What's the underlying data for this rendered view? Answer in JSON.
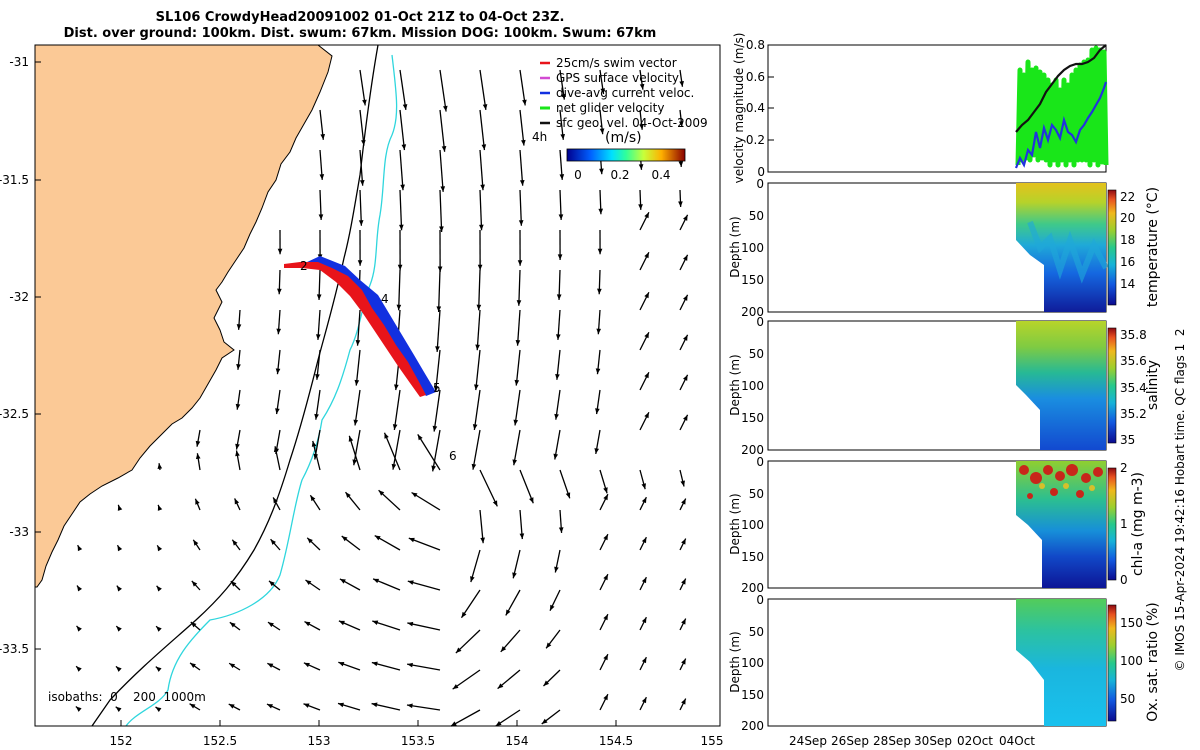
{
  "title": {
    "line1": "SL106 CrowdyHead20091002 01-Oct 21Z to 04-Oct 23Z.",
    "line2": "Dist. over ground: 100km. Dist. swum: 67km. Mission DOG: 100km. Swum: 67km"
  },
  "credit": "© IMOS 15-Apr-2024 19:42:16 Hobart time. QC flags 1  2",
  "colors": {
    "land": "#fbc996",
    "coast": "#000000",
    "iso200": "#000000",
    "iso1000": "#2fd6dd",
    "track_red": "#e8141a",
    "track_blue": "#1230e0",
    "vel_green": "#19e619",
    "vel_black": "#111111",
    "vel_blue": "#2233dd"
  },
  "chart_data": [
    {
      "type": "map",
      "xlim": [
        151.55,
        155
      ],
      "ylim": [
        -33.8,
        -30.95
      ],
      "xticks": [
        "152",
        "152.5",
        "153",
        "153.5",
        "154",
        "154.5",
        "155"
      ],
      "yticks": [
        "-31",
        "-31.5",
        "-32",
        "-32.5",
        "-33",
        "-33.5"
      ],
      "isobaths_label": "isobaths:  0    200  1000m",
      "legend": {
        "items": [
          "25cm/s swim vector",
          "GPS surface velocity",
          "dive-avg current veloc.",
          "net glider velocity",
          "sfc geo. vel. 04-Oct-2009"
        ],
        "item_colors": [
          "#e8141a",
          "#d24ad2",
          "#1230e0",
          "#19e619",
          "#111111"
        ],
        "scale_label": "4h",
        "colorbar_label": "(m/s)",
        "colorbar_ticks": [
          "0",
          "0.2",
          "0.4"
        ]
      },
      "track_labels": [
        "2",
        "4",
        "5",
        "6"
      ]
    },
    {
      "type": "line",
      "ylabel": "velocity magnitude (m/s)",
      "ylim": [
        0,
        0.8
      ],
      "yticks": [
        "0",
        "0.2",
        "0.4",
        "0.6",
        "0.8"
      ],
      "series": []
    },
    {
      "type": "heatmap",
      "ylabel": "Depth (m)",
      "colorbar_label": "temperature (°C)",
      "yticks": [
        "0",
        "50",
        "100",
        "150",
        "200"
      ],
      "colorbar_ticks": [
        "14",
        "16",
        "18",
        "20",
        "22"
      ]
    },
    {
      "type": "heatmap",
      "ylabel": "Depth (m)",
      "colorbar_label": "salinity",
      "yticks": [
        "0",
        "50",
        "100",
        "150",
        "200"
      ],
      "colorbar_ticks": [
        "35",
        "35.2",
        "35.4",
        "35.6",
        "35.8"
      ]
    },
    {
      "type": "heatmap",
      "ylabel": "Depth (m)",
      "colorbar_label": "chl-a (mg m-3)",
      "yticks": [
        "0",
        "50",
        "100",
        "150",
        "200"
      ],
      "colorbar_ticks": [
        "0",
        "1",
        "2"
      ]
    },
    {
      "type": "heatmap",
      "ylabel": "Depth (m)",
      "colorbar_label": "Ox. sat. ratio (%)",
      "yticks": [
        "0",
        "50",
        "100",
        "150",
        "200"
      ],
      "colorbar_ticks": [
        "50",
        "100",
        "150"
      ],
      "xticks": [
        "24Sep",
        "26Sep",
        "28Sep",
        "30Sep",
        "02Oct",
        "04Oct"
      ]
    }
  ]
}
